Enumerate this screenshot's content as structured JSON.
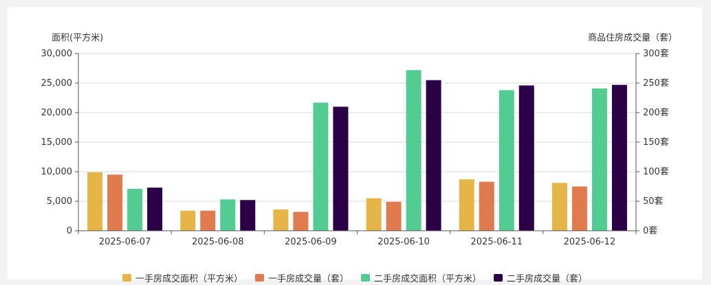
{
  "chart_data": {
    "type": "bar",
    "left_axis_title": "面积(平方米)",
    "right_axis_title": "商品住房成交量（套）",
    "categories": [
      "2025-06-07",
      "2025-06-08",
      "2025-06-09",
      "2025-06-10",
      "2025-06-11",
      "2025-06-12"
    ],
    "left_ticks": [
      "0",
      "5,000",
      "10,000",
      "15,000",
      "20,000",
      "25,000",
      "30,000"
    ],
    "right_ticks": [
      "0套",
      "50套",
      "100套",
      "150套",
      "200套",
      "250套",
      "300套"
    ],
    "ylim_left": [
      0,
      30000
    ],
    "ylim_right": [
      0,
      300
    ],
    "grid": true,
    "legend_position": "bottom",
    "series": [
      {
        "name": "一手房成交面积（平方米）",
        "axis": "left",
        "color": "#e5b548",
        "values": [
          9900,
          3400,
          3600,
          5500,
          8700,
          8100
        ]
      },
      {
        "name": "一手房成交量（套）",
        "axis": "right",
        "color": "#e07b4f",
        "values": [
          95,
          34,
          32,
          49,
          83,
          75
        ]
      },
      {
        "name": "二手房成交面积（平方米）",
        "axis": "left",
        "color": "#52cc93",
        "values": [
          7100,
          5300,
          21700,
          27200,
          23800,
          24100
        ]
      },
      {
        "name": "二手房成交量（套）",
        "axis": "right",
        "color": "#2b0046",
        "values": [
          73,
          52,
          210,
          255,
          246,
          247
        ]
      }
    ]
  }
}
